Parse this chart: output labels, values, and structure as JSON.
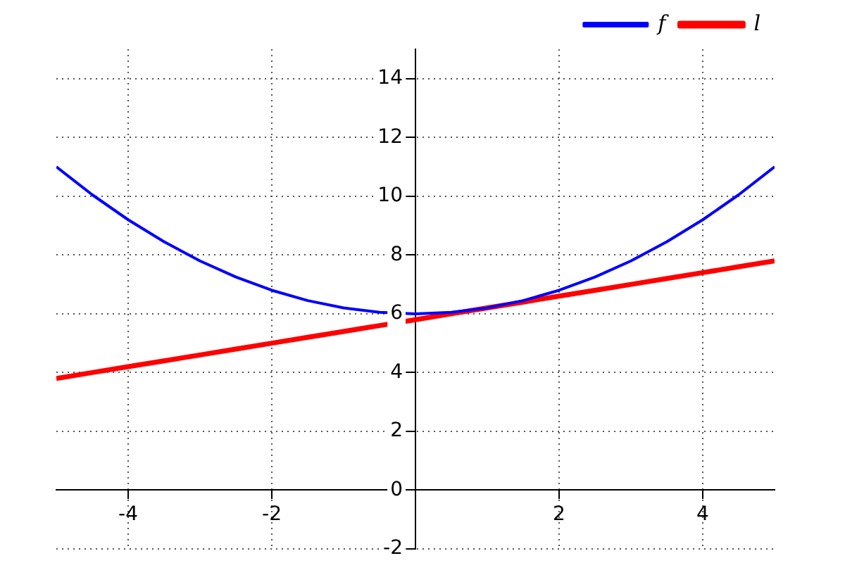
{
  "chart_data": {
    "type": "line",
    "x": [
      -5,
      -4.5,
      -4,
      -3.5,
      -3,
      -2.5,
      -2,
      -1.5,
      -1,
      -0.5,
      0,
      0.5,
      1,
      1.5,
      2,
      2.5,
      3,
      3.5,
      4,
      4.5,
      5
    ],
    "series": [
      {
        "name": "f",
        "color": "#0000ff",
        "values": [
          11,
          10.05,
          9.2,
          8.45,
          7.8,
          7.25,
          6.8,
          6.45,
          6.2,
          6.05,
          6,
          6.05,
          6.2,
          6.45,
          6.8,
          7.25,
          7.8,
          8.45,
          9.2,
          10.05,
          11
        ]
      },
      {
        "name": "l",
        "color": "#ff0000",
        "values": [
          3.8,
          4,
          4.2,
          4.4,
          4.6,
          4.8,
          5,
          5.2,
          5.4,
          5.6,
          5.8,
          6,
          6.2,
          6.4,
          6.6,
          6.8,
          7,
          7.2,
          7.4,
          7.6,
          7.8
        ]
      }
    ],
    "xlim": [
      -5,
      5
    ],
    "xticks": [
      -4,
      -2,
      2,
      4
    ],
    "ylim": [
      -2,
      15
    ],
    "yticks": [
      -2,
      0,
      2,
      4,
      6,
      8,
      10,
      12,
      14
    ],
    "grid": true,
    "legend": "top right",
    "marker": "none",
    "line_style": "solid"
  }
}
